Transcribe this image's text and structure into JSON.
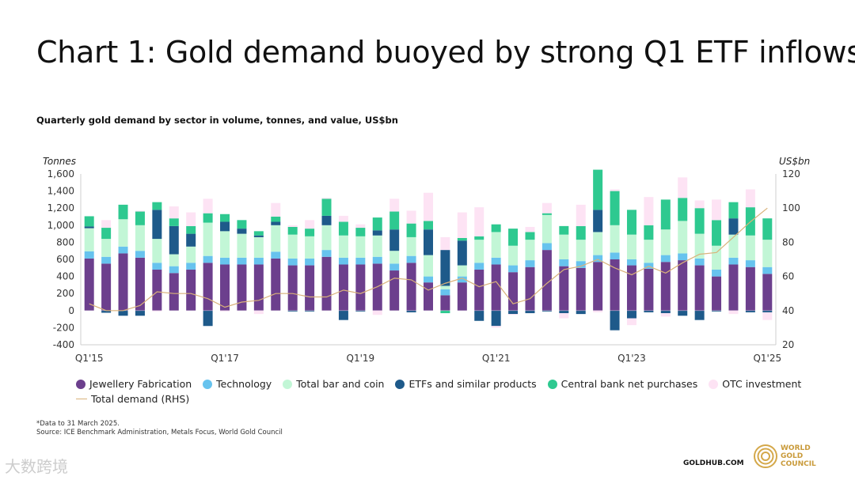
{
  "title": "Chart 1: Gold demand buoyed by strong Q1 ETF inflows",
  "subtitle": "Quarterly gold demand by sector in volume, tonnes, and value, US$bn",
  "chart_data": {
    "type": "bar",
    "stacked": true,
    "y_left_label": "Tonnes",
    "y_right_label": "US$bn",
    "ylim_left": [
      -400,
      1600
    ],
    "ylim_right": [
      20,
      120
    ],
    "y_left_ticks": [
      "1,600",
      "1,400",
      "1,200",
      "1,000",
      "800",
      "600",
      "400",
      "200",
      "0",
      "-200",
      "-400"
    ],
    "y_right_ticks": [
      "120",
      "100",
      "80",
      "60",
      "40",
      "20"
    ],
    "x_tick_labels": [
      "Q1'15",
      "Q1'17",
      "Q1'19",
      "Q1'21",
      "Q1'23",
      "Q1'25"
    ],
    "grid": false,
    "categories": [
      "Q1'15",
      "Q2'15",
      "Q3'15",
      "Q4'15",
      "Q1'16",
      "Q2'16",
      "Q3'16",
      "Q4'16",
      "Q1'17",
      "Q2'17",
      "Q3'17",
      "Q4'17",
      "Q1'18",
      "Q2'18",
      "Q3'18",
      "Q4'18",
      "Q1'19",
      "Q2'19",
      "Q3'19",
      "Q4'19",
      "Q1'20",
      "Q2'20",
      "Q3'20",
      "Q4'20",
      "Q1'21",
      "Q2'21",
      "Q3'21",
      "Q4'21",
      "Q1'22",
      "Q2'22",
      "Q3'22",
      "Q4'22",
      "Q1'23",
      "Q2'23",
      "Q3'23",
      "Q4'23",
      "Q1'24",
      "Q2'24",
      "Q3'24",
      "Q4'24",
      "Q1'25"
    ],
    "series": [
      {
        "name": "Jewellery Fabrication",
        "color": "#6c3f8d",
        "values": [
          610,
          550,
          670,
          620,
          480,
          440,
          480,
          560,
          540,
          540,
          540,
          610,
          530,
          530,
          630,
          540,
          540,
          550,
          470,
          560,
          330,
          180,
          330,
          480,
          540,
          450,
          510,
          710,
          520,
          500,
          570,
          600,
          530,
          490,
          570,
          590,
          530,
          400,
          540,
          510,
          430
        ]
      },
      {
        "name": "Technology",
        "color": "#67c3ee",
        "values": [
          85,
          80,
          80,
          80,
          80,
          80,
          80,
          80,
          80,
          80,
          80,
          80,
          80,
          80,
          80,
          80,
          80,
          80,
          80,
          80,
          70,
          70,
          70,
          80,
          80,
          80,
          80,
          80,
          80,
          80,
          80,
          80,
          70,
          70,
          80,
          80,
          80,
          80,
          80,
          80,
          80
        ]
      },
      {
        "name": "Total bar and coin",
        "color": "#c2f6d6",
        "values": [
          270,
          210,
          320,
          300,
          280,
          140,
          190,
          390,
          310,
          280,
          240,
          310,
          280,
          260,
          290,
          260,
          250,
          250,
          150,
          220,
          250,
          40,
          130,
          270,
          300,
          230,
          240,
          330,
          290,
          250,
          270,
          320,
          290,
          270,
          300,
          380,
          290,
          280,
          270,
          290,
          320
        ]
      },
      {
        "name": "ETFs and similar products",
        "color": "#1e5a8a",
        "values": [
          20,
          -25,
          -60,
          -60,
          340,
          330,
          150,
          -180,
          110,
          60,
          20,
          40,
          -10,
          -10,
          110,
          -110,
          -10,
          60,
          250,
          -20,
          300,
          420,
          290,
          -120,
          -180,
          -40,
          -30,
          -10,
          -30,
          -40,
          260,
          -230,
          -90,
          -20,
          -30,
          -60,
          -110,
          -10,
          190,
          -20,
          -20
        ]
      },
      {
        "name": "Central bank net purchases",
        "color": "#2ec990",
        "values": [
          120,
          130,
          170,
          160,
          90,
          90,
          90,
          110,
          90,
          100,
          50,
          60,
          90,
          90,
          200,
          160,
          100,
          150,
          210,
          160,
          100,
          -30,
          30,
          40,
          90,
          200,
          90,
          20,
          100,
          160,
          470,
          400,
          290,
          170,
          350,
          270,
          300,
          300,
          190,
          330,
          250
        ]
      },
      {
        "name": "OTC investment",
        "color": "#fde3f4",
        "values": [
          0,
          90,
          0,
          10,
          -10,
          140,
          160,
          170,
          -10,
          0,
          -40,
          160,
          20,
          100,
          10,
          70,
          40,
          -50,
          150,
          150,
          330,
          150,
          300,
          340,
          -20,
          -10,
          60,
          120,
          -60,
          250,
          -20,
          20,
          -80,
          330,
          -40,
          240,
          90,
          240,
          -40,
          210,
          -90
        ]
      },
      {
        "name": "Total demand (RHS)",
        "color": "#d9b27a",
        "type": "line",
        "axis": "right",
        "values": [
          44,
          40,
          40,
          43,
          51,
          50,
          50,
          47,
          42,
          45,
          46,
          50,
          50,
          48,
          48,
          52,
          50,
          54,
          59,
          58,
          52,
          56,
          59,
          54,
          57,
          44,
          47,
          56,
          64,
          66,
          70,
          65,
          61,
          66,
          62,
          68,
          73,
          74,
          83,
          92,
          100
        ]
      }
    ]
  },
  "legend": [
    {
      "label": "Jewellery Fabrication",
      "color": "#6c3f8d",
      "marker": "dot"
    },
    {
      "label": "Technology",
      "color": "#67c3ee",
      "marker": "dot"
    },
    {
      "label": "Total bar and coin",
      "color": "#c2f6d6",
      "marker": "dot"
    },
    {
      "label": "ETFs and similar products",
      "color": "#1e5a8a",
      "marker": "dot"
    },
    {
      "label": "Central bank net purchases",
      "color": "#2ec990",
      "marker": "dot"
    },
    {
      "label": "OTC investment",
      "color": "#fde3f4",
      "marker": "dot"
    },
    {
      "label": "Total demand (RHS)",
      "color": "#d9b27a",
      "marker": "line"
    }
  ],
  "footnote": "*Data to 31 March 2025.",
  "source": "Source: ICE Benchmark Administration, Metals Focus, World Gold Council",
  "goldhub": "GOLDHUB.COM",
  "wgc_logo_text": [
    "WORLD",
    "GOLD",
    "COUNCIL"
  ],
  "watermark": "大数跨境"
}
